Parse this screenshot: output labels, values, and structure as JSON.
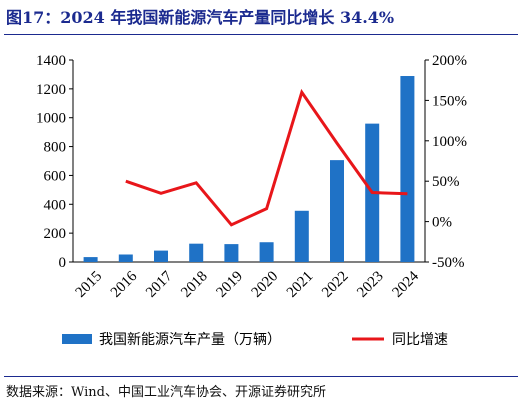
{
  "title": "图17：2024 年我国新能源汽车产量同比增长 34.4%",
  "source": "数据来源：Wind、中国工业汽车协会、开源证券研究所",
  "colors": {
    "bar": "#1f72c6",
    "line": "#e8161a",
    "title": "#1b2a8f",
    "axis": "#000000"
  },
  "chart_data": {
    "type": "bar",
    "categories": [
      "2015",
      "2016",
      "2017",
      "2018",
      "2019",
      "2020",
      "2021",
      "2022",
      "2023",
      "2024"
    ],
    "y_left": {
      "lim": [
        0,
        1400
      ],
      "ticks": [
        "0",
        "200",
        "400",
        "600",
        "800",
        "1000",
        "1200",
        "1400"
      ]
    },
    "y_right": {
      "lim": [
        -50,
        200
      ],
      "ticks": [
        "-50%",
        "0%",
        "50%",
        "100%",
        "150%",
        "200%"
      ]
    },
    "series": [
      {
        "name": "我国新能源汽车产量（万辆）",
        "type": "bar",
        "axis": "left",
        "values": [
          34,
          52,
          79,
          127,
          124,
          137,
          355,
          706,
          959,
          1289
        ]
      },
      {
        "name": "同比增速",
        "type": "line",
        "axis": "right",
        "values": [
          null,
          50,
          35,
          48,
          -4,
          16,
          160,
          97,
          36,
          34.4
        ]
      }
    ],
    "legend": "bottom",
    "grid": false
  }
}
